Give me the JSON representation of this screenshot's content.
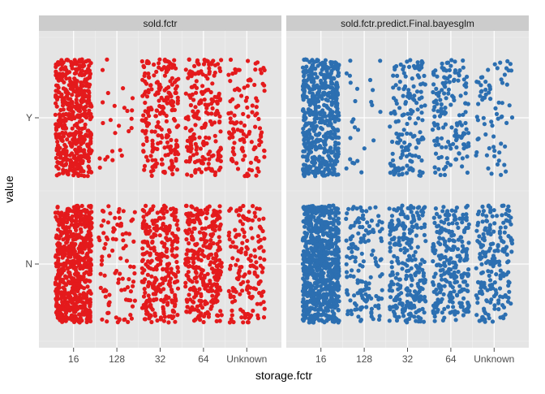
{
  "chart_data": {
    "type": "scatter",
    "title": "",
    "xlabel": "storage.fctr",
    "ylabel": "value",
    "jitter": true,
    "grid": true,
    "categories": [
      "16",
      "128",
      "32",
      "64",
      "Unknown"
    ],
    "y_levels": [
      "N",
      "Y"
    ],
    "facets": [
      {
        "name": "sold.fctr",
        "color": "#e41a1c",
        "approx_counts": {
          "Y": [
            500,
            25,
            220,
            200,
            120
          ],
          "N": [
            600,
            90,
            300,
            300,
            160
          ]
        }
      },
      {
        "name": "sold.fctr.predict.Final.bayesglm",
        "color": "#2c6fb1",
        "approx_counts": {
          "Y": [
            520,
            25,
            150,
            150,
            70
          ],
          "N": [
            800,
            150,
            260,
            260,
            200
          ]
        }
      }
    ]
  }
}
